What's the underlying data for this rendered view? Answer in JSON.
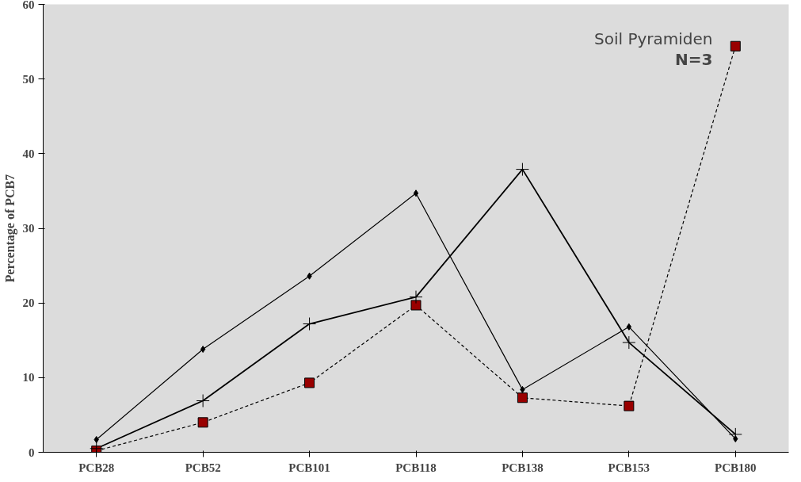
{
  "chart_data": {
    "type": "line",
    "ylabel": "Percentage of PCB7",
    "categories": [
      "PCB28",
      "PCB52",
      "PCB101",
      "PCB118",
      "PCB138",
      "PCB153",
      "PCB180"
    ],
    "series": [
      {
        "color": "#000000",
        "marker": "diamond",
        "line_style": "solid",
        "values": [
          1.7,
          13.8,
          23.6,
          34.7,
          8.4,
          16.8,
          1.8
        ]
      },
      {
        "color": "#000000",
        "marker": "cross",
        "line_style": "solid",
        "values": [
          0.5,
          6.9,
          17.2,
          20.8,
          37.9,
          14.7,
          2.4
        ]
      },
      {
        "color": "#990000",
        "marker": "square",
        "line_style": "dashed",
        "values": [
          0.2,
          4.0,
          9.3,
          19.7,
          7.3,
          6.2,
          54.4
        ]
      }
    ],
    "ylim": [
      0,
      60
    ],
    "yticks": [
      0,
      10,
      20,
      30,
      40,
      50,
      60
    ],
    "grid": false,
    "annotations": [
      "Soil Pyramiden",
      "N=3"
    ]
  }
}
